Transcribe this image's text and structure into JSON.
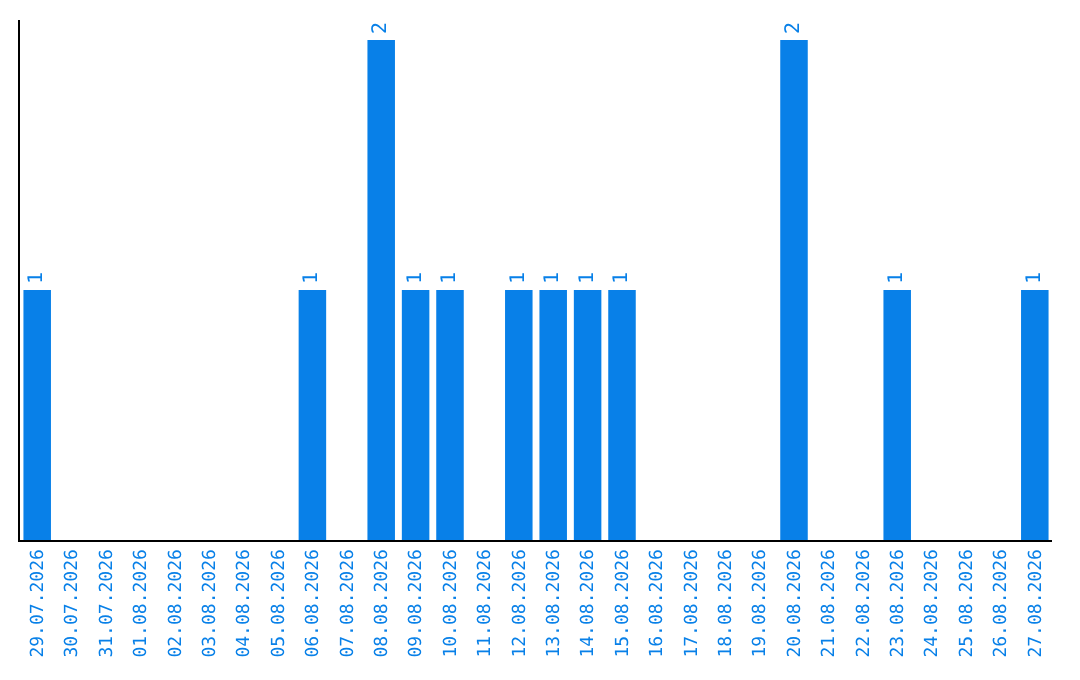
{
  "chart_data": {
    "type": "bar",
    "categories": [
      "29.07.2026",
      "30.07.2026",
      "31.07.2026",
      "01.08.2026",
      "02.08.2026",
      "03.08.2026",
      "04.08.2026",
      "05.08.2026",
      "06.08.2026",
      "07.08.2026",
      "08.08.2026",
      "09.08.2026",
      "10.08.2026",
      "11.08.2026",
      "12.08.2026",
      "13.08.2026",
      "14.08.2026",
      "15.08.2026",
      "16.08.2026",
      "17.08.2026",
      "18.08.2026",
      "19.08.2026",
      "20.08.2026",
      "21.08.2026",
      "22.08.2026",
      "23.08.2026",
      "24.08.2026",
      "25.08.2026",
      "26.08.2026",
      "27.08.2026"
    ],
    "values": [
      1,
      0,
      0,
      0,
      0,
      0,
      0,
      0,
      1,
      0,
      2,
      1,
      1,
      0,
      1,
      1,
      1,
      1,
      0,
      0,
      0,
      0,
      2,
      0,
      0,
      1,
      0,
      0,
      0,
      1
    ],
    "value_labels": [
      "1",
      null,
      null,
      null,
      null,
      null,
      null,
      null,
      "1",
      null,
      "2",
      "1",
      "1",
      null,
      "1",
      "1",
      "1",
      "1",
      null,
      null,
      null,
      null,
      "2",
      null,
      null,
      "1",
      null,
      null,
      null,
      "1"
    ],
    "color": "#0880e8",
    "ylim": [
      0,
      2.08
    ],
    "tick_labels": "x",
    "legend": false
  }
}
